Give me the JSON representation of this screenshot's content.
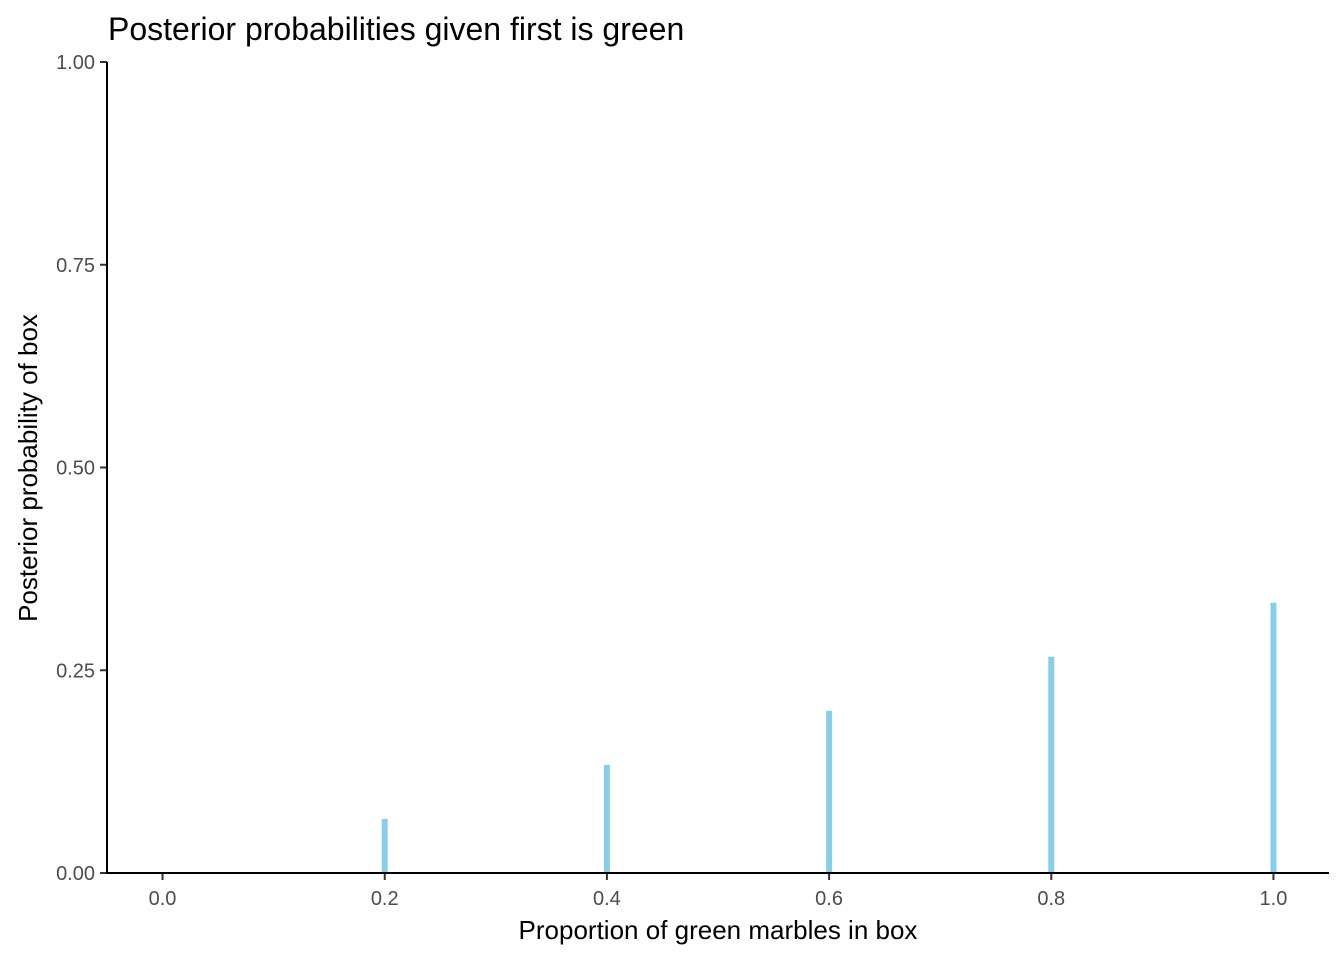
{
  "chart_data": {
    "type": "bar",
    "title": "Posterior probabilities given first is green",
    "xlabel": "Proportion of green marbles in box",
    "ylabel": "Posterior probability of box",
    "x": [
      0.0,
      0.2,
      0.4,
      0.6,
      0.8,
      1.0
    ],
    "values": [
      0.0,
      0.0667,
      0.1333,
      0.2,
      0.2667,
      0.3333
    ],
    "xlim": [
      -0.05,
      1.05
    ],
    "ylim": [
      0,
      1
    ],
    "x_ticks": [
      "0.0",
      "0.2",
      "0.4",
      "0.6",
      "0.8",
      "1.0"
    ],
    "y_ticks": [
      "0.00",
      "0.25",
      "0.50",
      "0.75",
      "1.00"
    ],
    "bar_color": "#87CEEB",
    "grid": false,
    "legend": "none"
  }
}
